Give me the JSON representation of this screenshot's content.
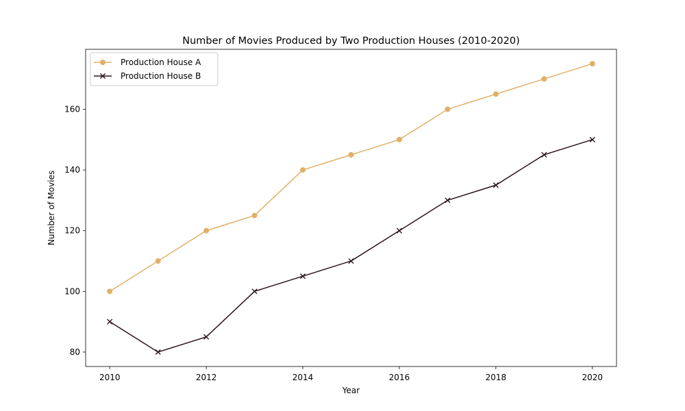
{
  "chart_data": {
    "type": "line",
    "title": "Number of Movies Produced by Two Production Houses (2010-2020)",
    "xlabel": "Year",
    "ylabel": "Number of Movies",
    "x": [
      2010,
      2011,
      2012,
      2013,
      2014,
      2015,
      2016,
      2017,
      2018,
      2019,
      2020
    ],
    "xlim": [
      2009.5,
      2020.5
    ],
    "ylim": [
      75.25,
      179.75
    ],
    "xticks": [
      2010,
      2012,
      2014,
      2016,
      2018,
      2020
    ],
    "yticks": [
      80,
      100,
      120,
      140,
      160
    ],
    "grid": false,
    "legend_position": "top-left",
    "series": [
      {
        "name": "Production House A",
        "color": "#e0b068",
        "marker": "circle",
        "values": [
          100,
          110,
          120,
          125,
          140,
          145,
          150,
          160,
          165,
          170,
          175
        ]
      },
      {
        "name": "Production House B",
        "color": "#2b1418",
        "marker": "x",
        "values": [
          90,
          80,
          85,
          100,
          105,
          110,
          120,
          130,
          135,
          145,
          150
        ]
      }
    ]
  }
}
